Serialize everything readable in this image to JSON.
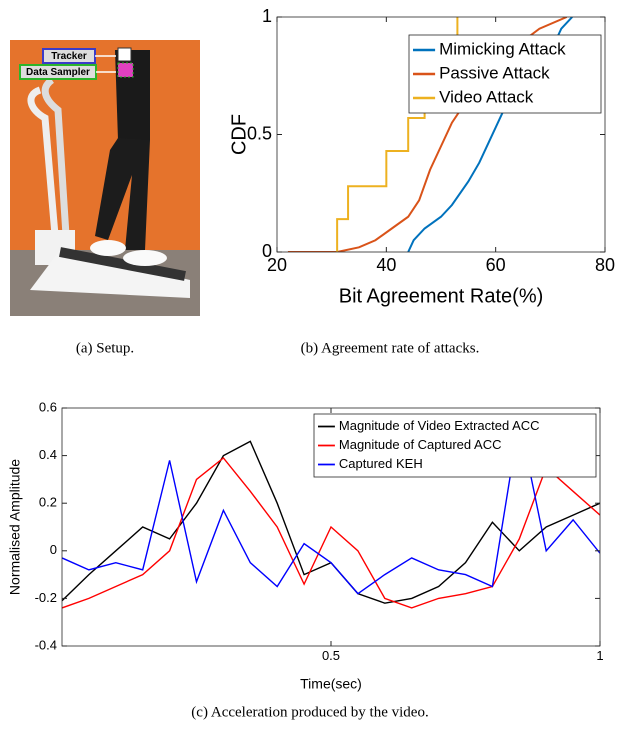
{
  "photo": {
    "labels": [
      "Tracker",
      "Data Sampler"
    ],
    "caption": "(a)  Setup."
  },
  "chart_data": [
    {
      "type": "line",
      "caption": "(b)  Agreement rate of attacks.",
      "xlabel": "Bit Agreement Rate(%)",
      "ylabel": "CDF",
      "xlim": [
        20,
        80
      ],
      "xticks": [
        20,
        40,
        60,
        80
      ],
      "ylim": [
        0,
        1
      ],
      "yticks": [
        0,
        0.5,
        1
      ],
      "legend": "upper right",
      "series": [
        {
          "name": "Mimicking Attack",
          "color": "#0072bd",
          "x": [
            44,
            45,
            47,
            50,
            52,
            55,
            57,
            59,
            61,
            63,
            64,
            66,
            68,
            71,
            72,
            74
          ],
          "values": [
            0,
            0.05,
            0.1,
            0.15,
            0.2,
            0.3,
            0.38,
            0.48,
            0.58,
            0.68,
            0.75,
            0.8,
            0.85,
            0.9,
            0.95,
            1
          ]
        },
        {
          "name": "Passive Attack",
          "color": "#d95319",
          "x": [
            22,
            31,
            35,
            38,
            41,
            44,
            46,
            48,
            50,
            52,
            54,
            57,
            60,
            64,
            68,
            73
          ],
          "values": [
            0,
            0,
            0.02,
            0.05,
            0.1,
            0.15,
            0.22,
            0.35,
            0.45,
            0.55,
            0.62,
            0.7,
            0.8,
            0.88,
            0.95,
            1
          ]
        },
        {
          "name": "Video Attack",
          "color": "#edb120",
          "x": [
            31,
            31,
            33,
            33,
            40,
            40,
            44,
            44,
            47,
            47,
            50,
            50,
            53,
            53
          ],
          "values": [
            0,
            0.14,
            0.14,
            0.28,
            0.28,
            0.43,
            0.43,
            0.57,
            0.57,
            0.71,
            0.71,
            0.86,
            0.86,
            1
          ]
        }
      ]
    },
    {
      "type": "line",
      "caption": "(c)  Acceleration produced by the video.",
      "xlabel": "Time(sec)",
      "ylabel": "Normalised Amplitude",
      "xlim": [
        0,
        1
      ],
      "xticks": [
        0.5,
        1
      ],
      "ylim": [
        -0.4,
        0.6
      ],
      "yticks": [
        -0.4,
        -0.2,
        0,
        0.2,
        0.4,
        0.6
      ],
      "legend": "upper right",
      "series": [
        {
          "name": "Magnitude of Video Extracted ACC",
          "color": "#000000",
          "x": [
            0,
            0.05,
            0.1,
            0.15,
            0.2,
            0.25,
            0.3,
            0.35,
            0.4,
            0.45,
            0.5,
            0.55,
            0.6,
            0.65,
            0.7,
            0.75,
            0.8,
            0.85,
            0.9,
            0.95,
            1
          ],
          "values": [
            -0.21,
            -0.1,
            0.0,
            0.1,
            0.05,
            0.2,
            0.4,
            0.46,
            0.2,
            -0.1,
            -0.05,
            -0.18,
            -0.22,
            -0.2,
            -0.15,
            -0.05,
            0.12,
            0.0,
            0.1,
            0.15,
            0.2
          ]
        },
        {
          "name": "Magnitude of Captured ACC",
          "color": "#ff0000",
          "x": [
            0,
            0.05,
            0.1,
            0.15,
            0.2,
            0.25,
            0.3,
            0.35,
            0.4,
            0.45,
            0.5,
            0.55,
            0.6,
            0.65,
            0.7,
            0.75,
            0.8,
            0.85,
            0.9,
            0.95,
            1
          ],
          "values": [
            -0.24,
            -0.2,
            -0.15,
            -0.1,
            0.0,
            0.3,
            0.39,
            0.25,
            0.1,
            -0.14,
            0.1,
            0.0,
            -0.2,
            -0.24,
            -0.2,
            -0.18,
            -0.15,
            0.05,
            0.35,
            0.25,
            0.15
          ]
        },
        {
          "name": "Captured KEH",
          "color": "#0000ff",
          "x": [
            0,
            0.05,
            0.1,
            0.15,
            0.2,
            0.25,
            0.3,
            0.35,
            0.4,
            0.45,
            0.5,
            0.55,
            0.6,
            0.65,
            0.7,
            0.75,
            0.8,
            0.85,
            0.9,
            0.95,
            1
          ],
          "values": [
            -0.03,
            -0.08,
            -0.05,
            -0.08,
            0.38,
            -0.13,
            0.17,
            -0.05,
            -0.15,
            0.03,
            -0.05,
            -0.18,
            -0.1,
            -0.03,
            -0.08,
            -0.1,
            -0.15,
            0.55,
            0.0,
            0.13,
            -0.01
          ]
        }
      ]
    }
  ]
}
